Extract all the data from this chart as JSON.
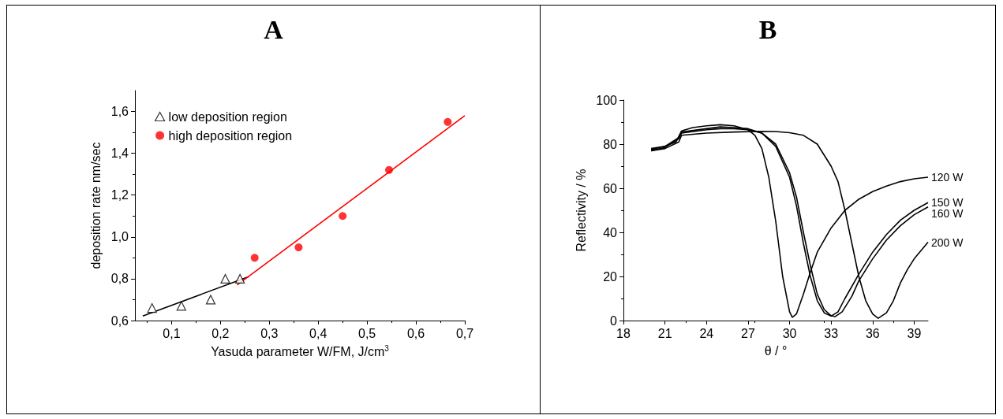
{
  "chart_data": [
    {
      "type": "scatter",
      "title": "A",
      "xlabel": "Yasuda parameter W/FM, J/cm$^{3}$",
      "ylabel": "deposition rate nm/sec",
      "xlim": [
        0.025,
        0.7
      ],
      "xticks": [
        {
          "value": 0.1,
          "label": "0,1"
        },
        {
          "value": 0.2,
          "label": "0,2"
        },
        {
          "value": 0.3,
          "label": "0,3"
        },
        {
          "value": 0.4,
          "label": "0,4"
        },
        {
          "value": 0.5,
          "label": "0,5"
        },
        {
          "value": 0.6,
          "label": "0,6"
        },
        {
          "value": 0.7,
          "label": "0,7"
        }
      ],
      "ylim": [
        0.6,
        1.7
      ],
      "yticks": [
        {
          "value": 0.6,
          "label": "0,6"
        },
        {
          "value": 0.8,
          "label": "0,8"
        },
        {
          "value": 1.0,
          "label": "1,0"
        },
        {
          "value": 1.2,
          "label": "1,2"
        },
        {
          "value": 1.4,
          "label": "1,4"
        },
        {
          "value": 1.6,
          "label": "1,6"
        }
      ],
      "grid": false,
      "legend": "top left",
      "series": [
        {
          "name": "low deposition region",
          "type": "scatter",
          "marker": "triangle",
          "color": "#000000",
          "x": [
            0.06,
            0.12,
            0.18,
            0.21,
            0.24
          ],
          "values": [
            0.66,
            0.67,
            0.7,
            0.8,
            0.8
          ]
        },
        {
          "name": "high deposition region",
          "type": "scatter",
          "marker": "circle",
          "color": "#ff0000",
          "x": [
            0.27,
            0.36,
            0.45,
            0.545,
            0.665
          ],
          "values": [
            0.9,
            0.95,
            1.1,
            1.32,
            1.55
          ]
        },
        {
          "type": "line",
          "marker": "none",
          "color": "#000000",
          "x": [
            0.041,
            0.258
          ],
          "values": [
            0.622,
            0.81
          ]
        },
        {
          "type": "line",
          "marker": "none",
          "color": "#ff0000",
          "x": [
            0.234,
            0.7
          ],
          "values": [
            0.77,
            1.58
          ]
        }
      ]
    },
    {
      "type": "line",
      "title": "B",
      "xlabel": "θ / °",
      "ylabel": "Reflectivity / %",
      "xlim": [
        18,
        40
      ],
      "xticks": [
        18,
        21,
        24,
        27,
        30,
        33,
        36,
        39
      ],
      "ylim": [
        0,
        100
      ],
      "yticks": [
        0,
        20,
        40,
        60,
        80,
        100
      ],
      "grid": false,
      "legend": false,
      "marker": "none",
      "series": [
        {
          "name": "120 W",
          "color": "#000000",
          "x": [
            20,
            21,
            21.8,
            22.2,
            23,
            24,
            25,
            26,
            27,
            27.5,
            28,
            28.5,
            29,
            29.5,
            30,
            30.2,
            30.5,
            31,
            31.5,
            32,
            33,
            34,
            35,
            36,
            37,
            38,
            39,
            40
          ],
          "values": [
            78,
            79,
            81,
            86,
            87.5,
            88.3,
            88.8,
            88.3,
            86.5,
            84,
            78,
            65,
            45,
            20,
            4,
            1.5,
            3,
            12,
            22,
            31,
            42,
            50,
            55,
            58.5,
            61,
            63,
            64.3,
            65
          ]
        },
        {
          "name": "150 W",
          "color": "#000000",
          "x": [
            20,
            21,
            22,
            22.2,
            24,
            25,
            26,
            27,
            28,
            29,
            30,
            30.5,
            31,
            31.5,
            32,
            32.5,
            33,
            33.5,
            34,
            35,
            36,
            37,
            38,
            39,
            40
          ],
          "values": [
            77.5,
            79,
            83,
            85.5,
            87,
            87.8,
            87.5,
            87,
            85,
            79,
            65,
            52,
            35,
            20,
            9,
            3.5,
            2,
            4,
            10,
            21,
            31,
            39,
            45.5,
            50,
            53.5
          ]
        },
        {
          "name": "160 W",
          "color": "#000000",
          "x": [
            20,
            21,
            22,
            22.2,
            24,
            25,
            26,
            27,
            28,
            29,
            30,
            30.5,
            31,
            31.5,
            32,
            32.5,
            33,
            33.3,
            33.8,
            34.5,
            35,
            36,
            37,
            38,
            39,
            40
          ],
          "values": [
            77,
            78.5,
            82.5,
            85,
            86.5,
            87,
            87,
            86.5,
            85,
            80,
            67,
            56,
            40,
            25,
            12,
            5,
            2.2,
            1.8,
            4,
            11,
            18,
            28,
            36.5,
            43,
            48,
            51.5
          ]
        },
        {
          "name": "200 W",
          "color": "#000000",
          "x": [
            20,
            21,
            22,
            22.2,
            24,
            26,
            28,
            29,
            30,
            31,
            32,
            33,
            33.5,
            34,
            34.5,
            35,
            35.5,
            36,
            36.4,
            37,
            37.5,
            38,
            38.5,
            39,
            40
          ],
          "values": [
            77,
            78,
            81,
            84,
            85,
            85.5,
            85.8,
            85.7,
            85.2,
            84,
            80,
            70,
            63,
            50,
            35,
            20,
            9,
            3,
            1,
            3.5,
            9,
            17,
            23,
            28,
            35.5
          ]
        }
      ]
    }
  ]
}
